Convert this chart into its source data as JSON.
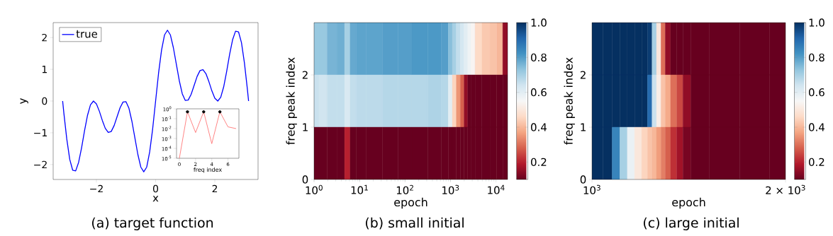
{
  "chart_data": [
    {
      "type": "line",
      "title": "(a) target function",
      "xlabel": "x",
      "ylabel": "y",
      "legend": "top left",
      "xlim": [
        -3.46,
        3.46
      ],
      "ylim": [
        -2.47,
        2.47
      ],
      "xticks": [
        {
          "value": -2,
          "label": "−2"
        },
        0,
        2
      ],
      "yticks": [
        {
          "value": -2,
          "label": "−2"
        },
        {
          "value": -1,
          "label": "−1"
        },
        0,
        1,
        2
      ],
      "series": [
        {
          "name": "true",
          "color": "#0000ff",
          "x": [
            -3.14,
            -3.1,
            -3.0,
            -2.9,
            -2.8,
            -2.7,
            -2.6,
            -2.5,
            -2.4,
            -2.3,
            -2.2,
            -2.1,
            -2.0,
            -1.9,
            -1.8,
            -1.7,
            -1.6,
            -1.5,
            -1.4,
            -1.3,
            -1.2,
            -1.1,
            -1.0,
            -0.9,
            -0.8,
            -0.7,
            -0.6,
            -0.5,
            -0.4,
            -0.3,
            -0.2,
            -0.1,
            0,
            0.1,
            0.2,
            0.3,
            0.4,
            0.5,
            0.6,
            0.7,
            0.8,
            0.9,
            1.0,
            1.1,
            1.2,
            1.3,
            1.4,
            1.5,
            1.6,
            1.7,
            1.8,
            1.9,
            2.0,
            2.1,
            2.2,
            2.3,
            2.4,
            2.5,
            2.6,
            2.7,
            2.8,
            2.9,
            3.0,
            3.1,
            3.14
          ],
          "values": [
            0,
            -0.37,
            -1.2,
            -1.84,
            -2.18,
            -2.2,
            -1.93,
            -1.47,
            -0.93,
            -0.45,
            -0.12,
            0,
            -0.09,
            -0.32,
            -0.61,
            -0.86,
            -0.99,
            -0.96,
            -0.77,
            -0.49,
            -0.21,
            -0.03,
            -0.02,
            -0.23,
            -0.64,
            -1.16,
            -1.68,
            -2.08,
            -2.23,
            -2.08,
            -1.6,
            -0.88,
            0,
            0.88,
            1.6,
            2.08,
            2.23,
            2.08,
            1.68,
            1.16,
            0.64,
            0.23,
            0.02,
            0.03,
            0.21,
            0.49,
            0.77,
            0.96,
            0.99,
            0.86,
            0.61,
            0.32,
            0.09,
            0,
            0.12,
            0.45,
            0.93,
            1.47,
            1.93,
            2.2,
            2.18,
            1.84,
            1.2,
            0.37,
            0
          ]
        }
      ]
    },
    {
      "type": "line",
      "xlabel": "freq index",
      "log": "y",
      "xlim": [
        -0.35,
        7.35
      ],
      "ylim": [
        1e-05,
        1
      ],
      "xticks": [
        0,
        2,
        4,
        6
      ],
      "yticks": [
        {
          "value": 1,
          "label": "10$^{0}$"
        },
        {
          "value": 0.1,
          "label": "10$^{-1}$"
        },
        {
          "value": 0.01,
          "label": "10$^{-2}$"
        },
        {
          "value": 0.001,
          "label": "10$^{-3}$"
        },
        {
          "value": 0.0001,
          "label": "10$^{-4}$"
        },
        {
          "value": 1e-05,
          "label": "10$^{-5}$"
        }
      ],
      "series": [
        {
          "color": "#ff6666",
          "x": [
            0,
            1,
            2,
            3,
            4,
            5,
            6,
            7
          ],
          "values": [
            1e-05,
            0.5,
            0.004,
            0.5,
            0.0003,
            0.5,
            0.015,
            0.01
          ]
        },
        {
          "type": "scatter",
          "color": "#000000",
          "x": [
            1,
            3,
            5
          ],
          "values": [
            0.5,
            0.5,
            0.5
          ]
        }
      ]
    },
    {
      "type": "heatmap",
      "title": "(b) small initial",
      "xlabel": "epoch",
      "ylabel": "freq peak index",
      "log": "x",
      "xlim": [
        1,
        18000
      ],
      "ylim": [
        0,
        3
      ],
      "xticks": [
        {
          "value": 1,
          "label": "10$^{0}$"
        },
        {
          "value": 10,
          "label": "10$^{1}$"
        },
        {
          "value": 100,
          "label": "10$^{2}$"
        },
        {
          "value": 1000,
          "label": "10$^{3}$"
        },
        {
          "value": 10000,
          "label": "10$^{4}$"
        }
      ],
      "yticks": [
        0,
        1,
        2
      ],
      "clim": [
        0.1,
        1.0
      ],
      "cticks": [
        0.2,
        0.4,
        0.6,
        0.8,
        {
          "value": 1,
          "label": "1.0"
        }
      ],
      "x": [
        1.1,
        1.5,
        2.5,
        4,
        5.5,
        7,
        10,
        20,
        50,
        100,
        200,
        500,
        800,
        1000,
        1200,
        1500,
        1800,
        2200,
        2600,
        3000,
        4000,
        6000,
        9000,
        12000,
        16500
      ],
      "cells": [
        [
          0.72,
          0.72,
          0.76,
          0.77,
          0.7,
          0.78,
          0.79,
          0.79,
          0.8,
          0.8,
          0.81,
          0.81,
          0.8,
          0.74,
          0.7,
          0.66,
          0.63,
          0.6,
          0.57,
          0.54,
          0.46,
          0.43,
          0.42,
          0.4,
          0.15
        ],
        [
          0.65,
          0.64,
          0.66,
          0.66,
          0.62,
          0.66,
          0.67,
          0.67,
          0.68,
          0.68,
          0.68,
          0.69,
          0.68,
          0.6,
          0.45,
          0.35,
          0.28,
          0.15,
          0.1,
          0.1,
          0.1,
          0.1,
          0.1,
          0.1,
          0.1
        ],
        [
          0.1,
          0.1,
          0.1,
          0.1,
          0.2,
          0.1,
          0.1,
          0.1,
          0.1,
          0.1,
          0.1,
          0.1,
          0.1,
          0.1,
          0.1,
          0.1,
          0.1,
          0.1,
          0.1,
          0.1,
          0.1,
          0.1,
          0.1,
          0.1,
          0.1
        ]
      ]
    },
    {
      "type": "heatmap",
      "title": "(c) large initial",
      "xlabel": "epoch",
      "ylabel": "freq peak index",
      "log": "x",
      "xlim": [
        1000,
        2000
      ],
      "ylim": [
        0,
        3
      ],
      "xticks": [
        {
          "value": 1000,
          "label": "10$^{3}$"
        },
        {
          "value": 2000,
          "label": "2 × 10$^{3}$"
        }
      ],
      "yticks": [
        0,
        1,
        2
      ],
      "clim": [
        0.1,
        1.0
      ],
      "cticks": [
        0.2,
        0.4,
        0.6,
        0.8,
        {
          "value": 1,
          "label": "1.0"
        }
      ],
      "x": [
        1020,
        1060,
        1090,
        1120,
        1150,
        1180,
        1210,
        1230,
        1250,
        1270,
        1290,
        1310,
        1340,
        1370,
        1400,
        1450,
        1600,
        1800,
        1980
      ],
      "cells": [
        [
          1,
          1,
          1,
          1,
          1,
          1,
          1,
          0.98,
          0.7,
          0.5,
          0.3,
          0.15,
          0.1,
          0.1,
          0.1,
          0.1,
          0.1,
          0.1,
          0.1
        ],
        [
          1,
          1,
          1,
          1,
          1,
          1,
          1,
          0.9,
          0.65,
          0.52,
          0.42,
          0.38,
          0.3,
          0.25,
          0.15,
          0.1,
          0.1,
          0.1,
          0.1
        ],
        [
          1,
          1,
          0.85,
          0.7,
          0.58,
          0.5,
          0.45,
          0.42,
          0.4,
          0.36,
          0.32,
          0.28,
          0.22,
          0.17,
          0.12,
          0.1,
          0.1,
          0.1,
          0.1
        ]
      ]
    }
  ]
}
